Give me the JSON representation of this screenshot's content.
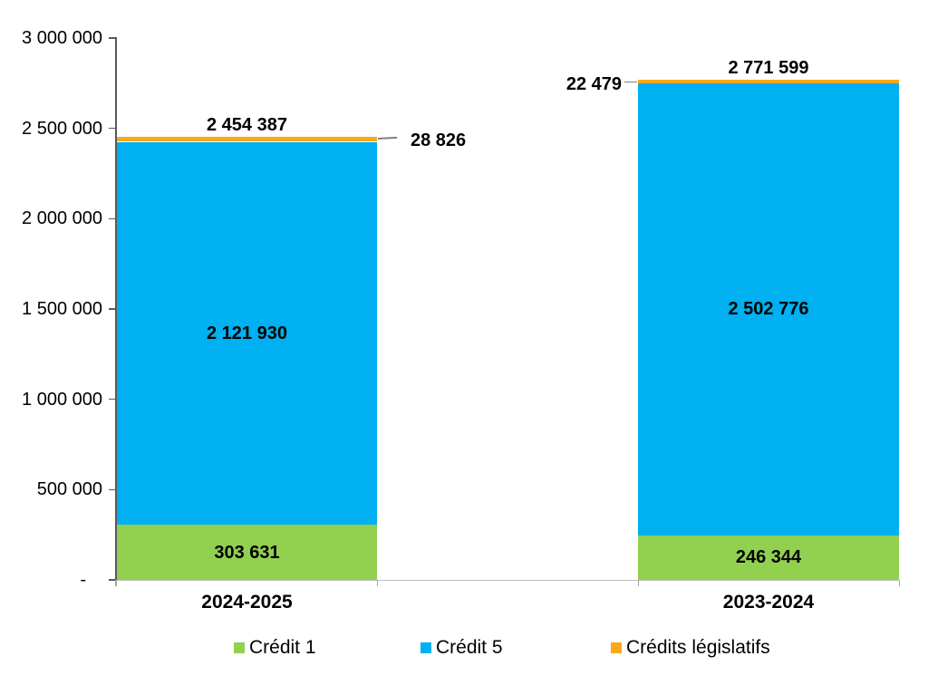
{
  "chart_data": {
    "type": "bar",
    "stacked": true,
    "title": "",
    "categories": [
      "2024-2025",
      "2023-2024"
    ],
    "series": [
      {
        "key": "credit-1",
        "name": "Crédit 1",
        "color": "#92D050",
        "values": [
          303631,
          246344
        ],
        "labels": [
          "303 631",
          "246 344"
        ],
        "label_placement": "inside"
      },
      {
        "key": "credit-5",
        "name": "Crédit 5",
        "color": "#00B0F0",
        "values": [
          2121930,
          2502776
        ],
        "labels": [
          "2 121 930",
          "2 502 776"
        ],
        "label_placement": "inside"
      },
      {
        "key": "credits-legislatifs",
        "name": "Crédits législatifs",
        "color": "#FAA819",
        "values": [
          28826,
          22479
        ],
        "labels": [
          "28 826",
          "22 479"
        ],
        "label_placement": "callout"
      }
    ],
    "totals": [
      2454387,
      2771599
    ],
    "total_labels": [
      "2 454 387",
      "2 771 599"
    ],
    "callouts": [
      {
        "series": "Crédits législatifs",
        "category": "2024-2025",
        "text": "28 826",
        "side": "right"
      },
      {
        "series": "Crédits législatifs",
        "category": "2023-2024",
        "text": "22 479",
        "side": "left"
      }
    ],
    "y_axis": {
      "min": 0,
      "max": 3000000,
      "tick_step": 500000,
      "tick_labels_bottom_up": [
        "-",
        "500 000",
        "1 000 000",
        "1 500 000",
        "2 000 000",
        "2 500 000",
        "3 000 000"
      ]
    },
    "grid": false,
    "legend": {
      "position": "bottom"
    },
    "colors": {
      "credit_1": "#92D050",
      "credit_5": "#00B0F0",
      "credits_legislatifs": "#FAA819",
      "axis_line": "#595959",
      "baseline": "#BFBFBF",
      "leader_line": "#808080",
      "label_text": "#000000"
    }
  }
}
